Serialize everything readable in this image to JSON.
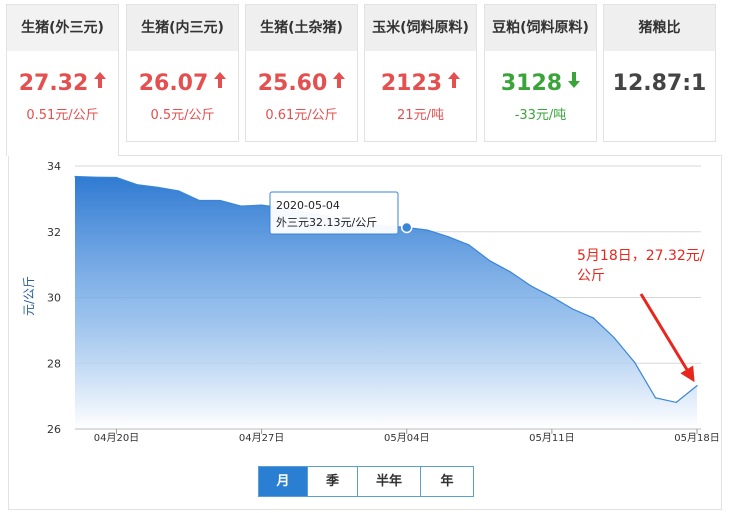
{
  "cards": [
    {
      "title": "生猪(外三元)",
      "price": "27.32",
      "change": "0.51元/公斤",
      "trend": "up"
    },
    {
      "title": "生猪(内三元)",
      "price": "26.07",
      "change": "0.5元/公斤",
      "trend": "up"
    },
    {
      "title": "生猪(土杂猪)",
      "price": "25.60",
      "change": "0.61元/公斤",
      "trend": "up"
    },
    {
      "title": "玉米(饲料原料)",
      "price": "2123",
      "change": "21元/吨",
      "trend": "up"
    },
    {
      "title": "豆粕(饲料原料)",
      "price": "3128",
      "change": "-33元/吨",
      "trend": "down"
    },
    {
      "title": "猪粮比",
      "price": "12.87:1",
      "change": "",
      "trend": "none"
    }
  ],
  "colors": {
    "up": "#e44f4f",
    "down": "#3aa43a",
    "line": "#3a86d6",
    "annotation": "#e8261e",
    "tab_active": "#2a7fd3"
  },
  "chart_data": {
    "type": "area",
    "ylabel": "元/公斤",
    "ylim": [
      26,
      34
    ],
    "yticks": [
      26,
      28,
      30,
      32,
      34
    ],
    "xlim": [
      "2020-04-18",
      "2020-05-18"
    ],
    "xticks": [
      {
        "date": "2020-04-20",
        "label": "04月20日"
      },
      {
        "date": "2020-04-27",
        "label": "04月27日"
      },
      {
        "date": "2020-05-04",
        "label": "05月04日"
      },
      {
        "date": "2020-05-11",
        "label": "05月11日"
      },
      {
        "date": "2020-05-18",
        "label": "05月18日"
      }
    ],
    "grid": true,
    "series": [
      {
        "name": "外三元",
        "x": [
          "2020-04-18",
          "2020-04-19",
          "2020-04-20",
          "2020-04-21",
          "2020-04-22",
          "2020-04-23",
          "2020-04-24",
          "2020-04-25",
          "2020-04-26",
          "2020-04-27",
          "2020-04-28",
          "2020-04-29",
          "2020-04-30",
          "2020-05-01",
          "2020-05-02",
          "2020-05-03",
          "2020-05-04",
          "2020-05-05",
          "2020-05-06",
          "2020-05-07",
          "2020-05-08",
          "2020-05-09",
          "2020-05-10",
          "2020-05-11",
          "2020-05-12",
          "2020-05-13",
          "2020-05-14",
          "2020-05-15",
          "2020-05-16",
          "2020-05-17",
          "2020-05-18"
        ],
        "values": [
          33.68,
          33.66,
          33.65,
          33.43,
          33.35,
          33.24,
          32.95,
          32.95,
          32.78,
          32.81,
          32.73,
          32.6,
          32.5,
          32.38,
          32.25,
          32.18,
          32.13,
          32.05,
          31.85,
          31.6,
          31.12,
          30.78,
          30.35,
          30.02,
          29.65,
          29.38,
          28.78,
          28.02,
          26.95,
          26.81,
          27.32
        ]
      }
    ],
    "tooltip": {
      "date": "2020-05-04",
      "text": "外三元32.13元/公斤"
    },
    "annotation": "5月18日，27.32元/公斤"
  },
  "period_tabs": [
    {
      "label": "月",
      "active": true
    },
    {
      "label": "季",
      "active": false
    },
    {
      "label": "半年",
      "active": false
    },
    {
      "label": "年",
      "active": false
    }
  ]
}
